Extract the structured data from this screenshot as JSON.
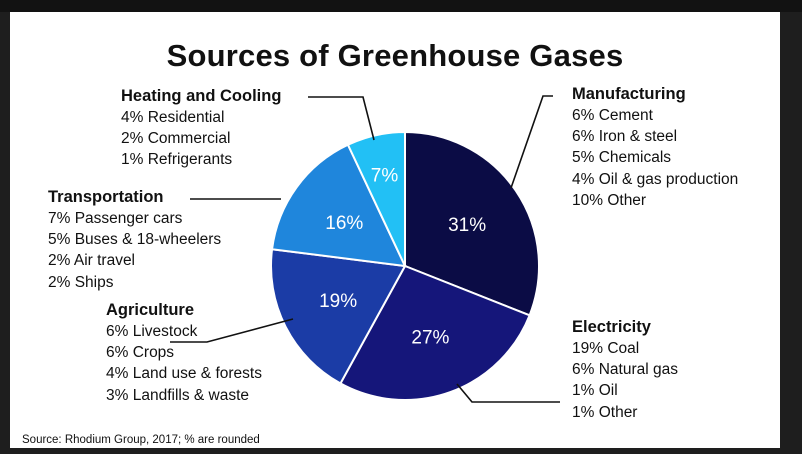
{
  "chart_data": {
    "type": "pie",
    "title": "Sources of Greenhouse Gases",
    "source": "Source: Rhodium Group, 2017; % are rounded",
    "slices": [
      {
        "name": "Manufacturing",
        "value": 31,
        "label": "31%",
        "color": "#0b0c45",
        "items": [
          "6% Cement",
          "6% Iron & steel",
          "5% Chemicals",
          "4% Oil & gas production",
          "10% Other"
        ]
      },
      {
        "name": "Electricity",
        "value": 27,
        "label": "27%",
        "color": "#15167a",
        "items": [
          "19% Coal",
          "6% Natural gas",
          "1% Oil",
          "1% Other"
        ]
      },
      {
        "name": "Agriculture",
        "value": 19,
        "label": "19%",
        "color": "#1b3ca6",
        "items": [
          "6% Livestock",
          "6% Crops",
          "4% Land use & forests",
          "3% Landfills & waste"
        ]
      },
      {
        "name": "Transportation",
        "value": 16,
        "label": "16%",
        "color": "#1f86dc",
        "items": [
          "7% Passenger cars",
          "5% Buses & 18-wheelers",
          "2% Air travel",
          "2% Ships"
        ]
      },
      {
        "name": "Heating and Cooling",
        "value": 7,
        "label": "7%",
        "color": "#22c0f5",
        "items": [
          "4% Residential",
          "2% Commercial",
          "1% Refrigerants"
        ]
      }
    ]
  }
}
